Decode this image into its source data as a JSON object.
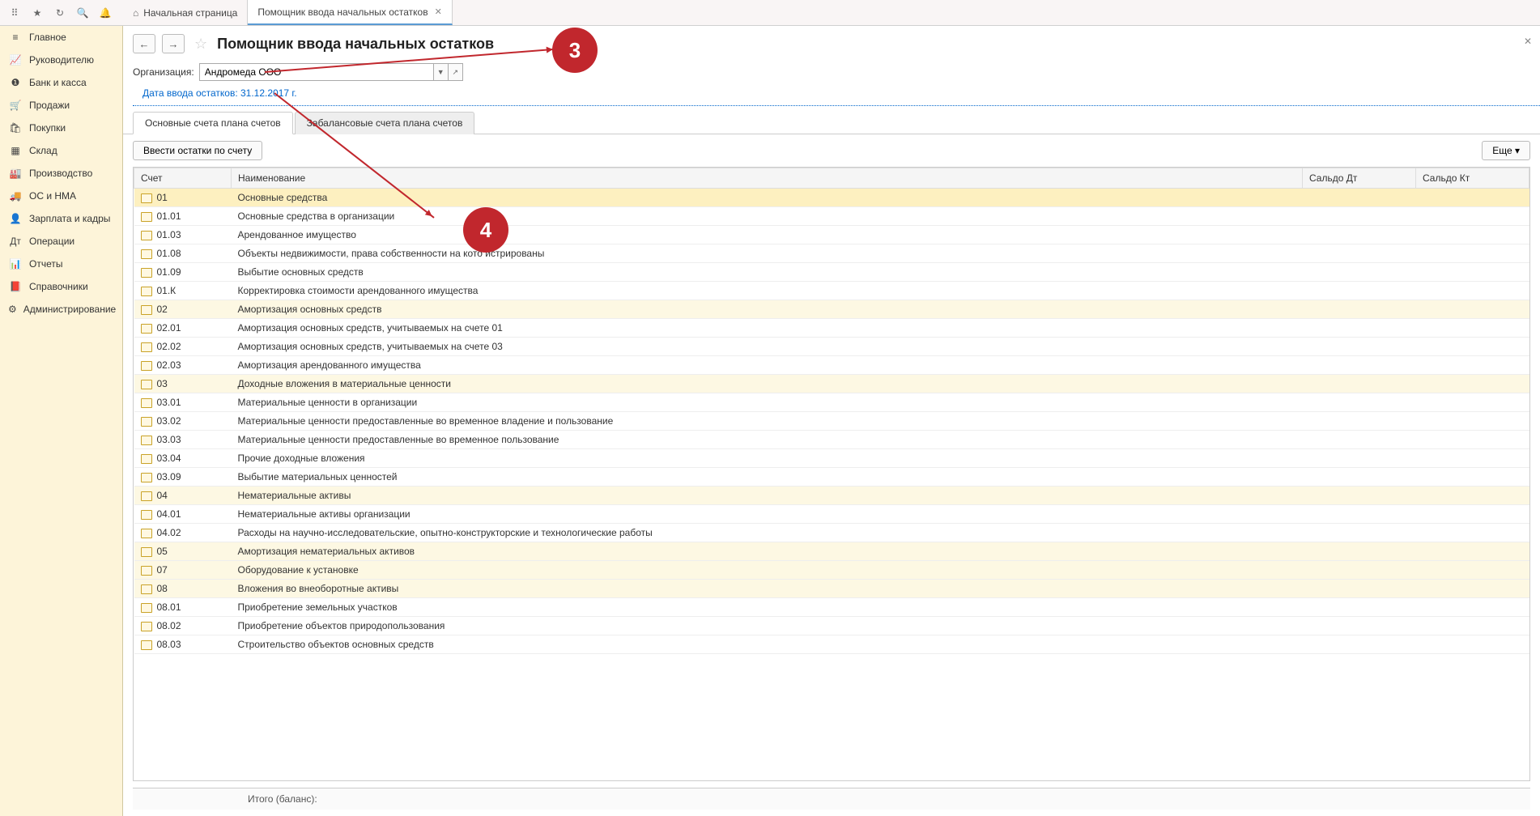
{
  "tabs": {
    "home": "Начальная страница",
    "assistant": "Помощник ввода начальных остатков"
  },
  "sidebar": [
    {
      "label": "Главное",
      "icon": "≡"
    },
    {
      "label": "Руководителю",
      "icon": "📈"
    },
    {
      "label": "Банк и касса",
      "icon": "❶"
    },
    {
      "label": "Продажи",
      "icon": "🛒"
    },
    {
      "label": "Покупки",
      "icon": "🛍"
    },
    {
      "label": "Склад",
      "icon": "▦"
    },
    {
      "label": "Производство",
      "icon": "🏭"
    },
    {
      "label": "ОС и НМА",
      "icon": "🚚"
    },
    {
      "label": "Зарплата и кадры",
      "icon": "👤"
    },
    {
      "label": "Операции",
      "icon": "Дт"
    },
    {
      "label": "Отчеты",
      "icon": "📊"
    },
    {
      "label": "Справочники",
      "icon": "📕"
    },
    {
      "label": "Администрирование",
      "icon": "⚙"
    }
  ],
  "page": {
    "title": "Помощник ввода начальных остатков",
    "org_label": "Организация:",
    "org_value": "Андромеда ООО",
    "date_link": "Дата ввода остатков: 31.12.2017 г.",
    "tab1": "Основные счета плана счетов",
    "tab2": "Забалансовые счета плана счетов",
    "enter_btn": "Ввести остатки по счету",
    "more_btn": "Еще ▾",
    "footer": "Итого (баланс):"
  },
  "columns": {
    "acct": "Счет",
    "name": "Наименование",
    "dt": "Сальдо Дт",
    "kt": "Сальдо Кт"
  },
  "rows": [
    {
      "acct": "01",
      "name": "Основные средства",
      "hl": true,
      "sel": true
    },
    {
      "acct": "01.01",
      "name": "Основные средства в организации"
    },
    {
      "acct": "01.03",
      "name": "Арендованное имущество"
    },
    {
      "acct": "01.08",
      "name": "Объекты недвижимости, права собственности на кото                    истрированы"
    },
    {
      "acct": "01.09",
      "name": "Выбытие основных средств"
    },
    {
      "acct": "01.К",
      "name": "Корректировка стоимости арендованного имущества"
    },
    {
      "acct": "02",
      "name": "Амортизация основных средств",
      "hl": true
    },
    {
      "acct": "02.01",
      "name": "Амортизация основных средств, учитываемых на счете 01"
    },
    {
      "acct": "02.02",
      "name": "Амортизация основных средств, учитываемых на счете 03"
    },
    {
      "acct": "02.03",
      "name": "Амортизация арендованного имущества"
    },
    {
      "acct": "03",
      "name": "Доходные вложения в материальные ценности",
      "hl": true
    },
    {
      "acct": "03.01",
      "name": "Материальные ценности в организации"
    },
    {
      "acct": "03.02",
      "name": "Материальные ценности предоставленные во временное владение и пользование"
    },
    {
      "acct": "03.03",
      "name": "Материальные ценности предоставленные во временное пользование"
    },
    {
      "acct": "03.04",
      "name": "Прочие доходные вложения"
    },
    {
      "acct": "03.09",
      "name": "Выбытие материальных ценностей"
    },
    {
      "acct": "04",
      "name": "Нематериальные активы",
      "hl": true
    },
    {
      "acct": "04.01",
      "name": "Нематериальные активы организации"
    },
    {
      "acct": "04.02",
      "name": "Расходы на научно-исследовательские, опытно-конструкторские и технологические работы"
    },
    {
      "acct": "05",
      "name": "Амортизация нематериальных активов",
      "hl": true
    },
    {
      "acct": "07",
      "name": "Оборудование к установке",
      "hl": true
    },
    {
      "acct": "08",
      "name": "Вложения во внеоборотные активы",
      "hl": true
    },
    {
      "acct": "08.01",
      "name": "Приобретение земельных участков"
    },
    {
      "acct": "08.02",
      "name": "Приобретение объектов природопользования"
    },
    {
      "acct": "08.03",
      "name": "Строительство объектов основных средств"
    }
  ],
  "callouts": {
    "c3": "3",
    "c4": "4"
  }
}
